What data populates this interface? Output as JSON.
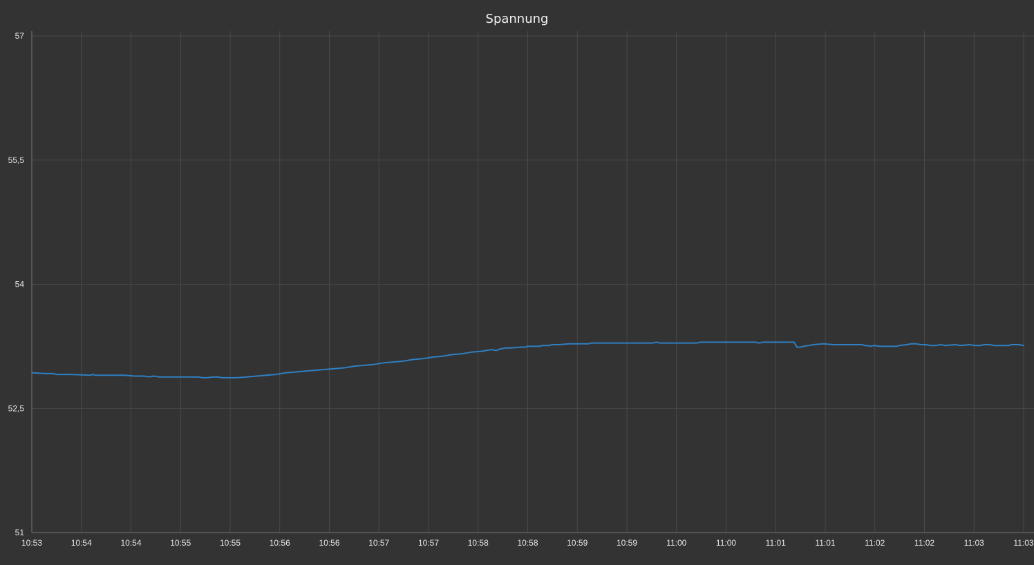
{
  "chart_data": {
    "type": "line",
    "title": "Spannung",
    "xlabel": "",
    "ylabel": "",
    "ylim": [
      51,
      57
    ],
    "y_ticks": [
      51,
      52.5,
      54,
      55.5,
      57
    ],
    "y_tick_labels": [
      "51",
      "52,5",
      "54",
      "55,5",
      "57"
    ],
    "x_tick_labels": [
      "10:53",
      "10:54",
      "10:54",
      "10:55",
      "10:55",
      "10:56",
      "10:56",
      "10:57",
      "10:57",
      "10:58",
      "10:58",
      "10:59",
      "10:59",
      "11:00",
      "11:00",
      "11:01",
      "11:01",
      "11:02",
      "11:02",
      "11:03",
      "11:03"
    ],
    "x_range_minutes": [
      0,
      10.15
    ],
    "grid": true,
    "legend": "none",
    "colors": {
      "background": "#333333",
      "grid": "#4a4a4a",
      "axis": "#777777",
      "line": "#2f7fc1",
      "text": "#e6e6e6"
    },
    "series": [
      {
        "points": [
          [
            0.0,
            52.93
          ],
          [
            0.15,
            52.92
          ],
          [
            0.22,
            52.92
          ],
          [
            0.25,
            52.91
          ],
          [
            0.4,
            52.91
          ],
          [
            0.6,
            52.9
          ],
          [
            0.62,
            52.91
          ],
          [
            0.65,
            52.9
          ],
          [
            0.95,
            52.9
          ],
          [
            1.05,
            52.89
          ],
          [
            1.15,
            52.89
          ],
          [
            1.2,
            52.88
          ],
          [
            1.25,
            52.89
          ],
          [
            1.3,
            52.88
          ],
          [
            1.7,
            52.88
          ],
          [
            1.75,
            52.87
          ],
          [
            1.8,
            52.87
          ],
          [
            1.85,
            52.88
          ],
          [
            1.9,
            52.88
          ],
          [
            1.95,
            52.87
          ],
          [
            2.0,
            52.87
          ],
          [
            2.1,
            52.87
          ],
          [
            2.2,
            52.88
          ],
          [
            2.3,
            52.89
          ],
          [
            2.4,
            52.9
          ],
          [
            2.5,
            52.91
          ],
          [
            2.6,
            52.93
          ],
          [
            2.7,
            52.94
          ],
          [
            2.8,
            52.95
          ],
          [
            2.9,
            52.96
          ],
          [
            3.0,
            52.97
          ],
          [
            3.1,
            52.98
          ],
          [
            3.2,
            52.99
          ],
          [
            3.3,
            53.01
          ],
          [
            3.4,
            53.02
          ],
          [
            3.5,
            53.03
          ],
          [
            3.6,
            53.05
          ],
          [
            3.7,
            53.06
          ],
          [
            3.8,
            53.07
          ],
          [
            3.9,
            53.09
          ],
          [
            4.0,
            53.1
          ],
          [
            4.1,
            53.12
          ],
          [
            4.2,
            53.13
          ],
          [
            4.3,
            53.15
          ],
          [
            4.4,
            53.16
          ],
          [
            4.5,
            53.18
          ],
          [
            4.6,
            53.19
          ],
          [
            4.7,
            53.21
          ],
          [
            4.75,
            53.2
          ],
          [
            4.8,
            53.22
          ],
          [
            4.85,
            53.23
          ],
          [
            4.9,
            53.23
          ],
          [
            5.0,
            53.24
          ],
          [
            5.05,
            53.24
          ],
          [
            5.07,
            53.25
          ],
          [
            5.2,
            53.25
          ],
          [
            5.22,
            53.26
          ],
          [
            5.3,
            53.26
          ],
          [
            5.32,
            53.27
          ],
          [
            5.4,
            53.27
          ],
          [
            5.5,
            53.28
          ],
          [
            5.7,
            53.28
          ],
          [
            5.72,
            53.29
          ],
          [
            6.35,
            53.29
          ],
          [
            6.4,
            53.3
          ],
          [
            6.42,
            53.29
          ],
          [
            6.8,
            53.29
          ],
          [
            6.85,
            53.3
          ],
          [
            7.4,
            53.3
          ],
          [
            7.45,
            53.29
          ],
          [
            7.48,
            53.3
          ],
          [
            7.8,
            53.3
          ],
          [
            7.83,
            53.24
          ],
          [
            7.86,
            53.24
          ],
          [
            7.9,
            53.25
          ],
          [
            7.95,
            53.26
          ],
          [
            8.0,
            53.27
          ],
          [
            8.1,
            53.28
          ],
          [
            8.2,
            53.27
          ],
          [
            8.5,
            53.27
          ],
          [
            8.52,
            53.26
          ],
          [
            8.55,
            53.26
          ],
          [
            8.58,
            53.25
          ],
          [
            8.62,
            53.26
          ],
          [
            8.68,
            53.25
          ],
          [
            8.85,
            53.25
          ],
          [
            8.88,
            53.26
          ],
          [
            8.95,
            53.27
          ],
          [
            9.0,
            53.28
          ],
          [
            9.05,
            53.28
          ],
          [
            9.1,
            53.27
          ],
          [
            9.15,
            53.27
          ],
          [
            9.2,
            53.26
          ],
          [
            9.25,
            53.26
          ],
          [
            9.3,
            53.27
          ],
          [
            9.35,
            53.26
          ],
          [
            9.45,
            53.27
          ],
          [
            9.5,
            53.26
          ],
          [
            9.6,
            53.27
          ],
          [
            9.65,
            53.26
          ],
          [
            9.7,
            53.26
          ],
          [
            9.75,
            53.27
          ],
          [
            9.8,
            53.27
          ],
          [
            9.85,
            53.26
          ],
          [
            10.0,
            53.26
          ],
          [
            10.02,
            53.27
          ],
          [
            10.1,
            53.27
          ],
          [
            10.15,
            53.26
          ]
        ]
      }
    ]
  }
}
